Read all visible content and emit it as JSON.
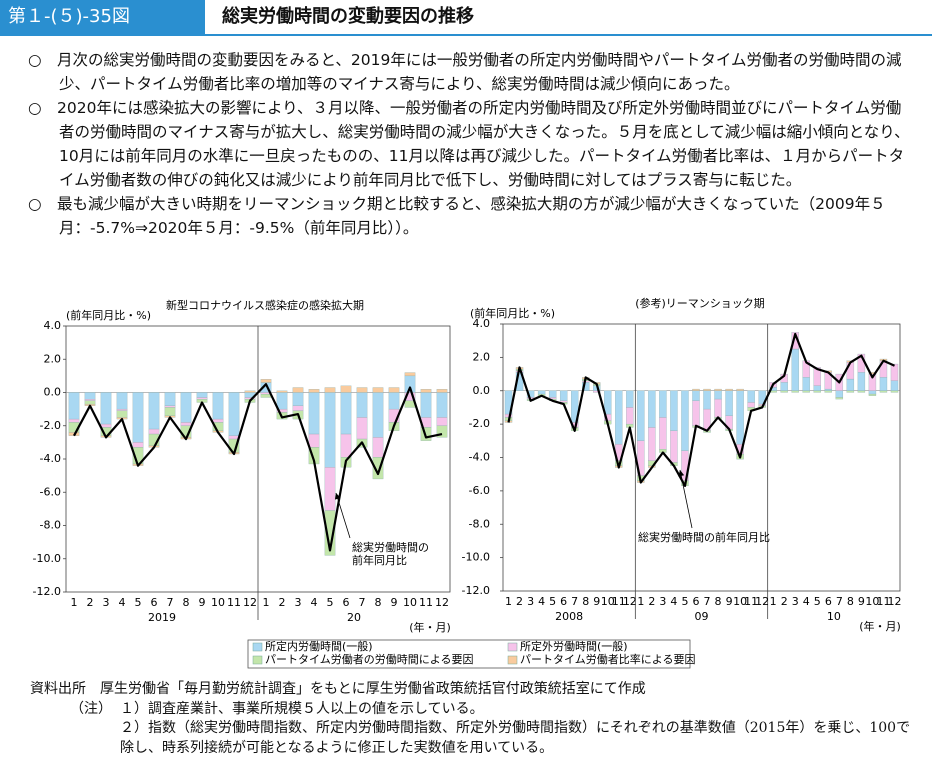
{
  "header": {
    "figure_number": "第１-(５)-35図",
    "title": "総実労働時間の変動要因の推移"
  },
  "paragraphs": [
    "○　月次の総実労働時間の変動要因をみると、2019年には一般労働者の所定内労働時間やパートタイム労働者の労働時間の減少、パートタイム労働者比率の増加等のマイナス寄与により、総実労働時間は減少傾向にあった。",
    "○　2020年には感染拡大の影響により、３月以降、一般労働者の所定内労働時間及び所定外労働時間並びにパートタイム労働者の労働時間のマイナス寄与が拡大し、総実労働時間の減少幅が大きくなった。５月を底として減少幅は縮小傾向となり、10月には前年同月の水準に一旦戻ったものの、11月以降は再び減少した。パートタイム労働者比率は、１月からパートタイム労働者数の伸びの鈍化又は減少により前年同月比で低下し、労働時間に対してはプラス寄与に転じた。",
    "○　最も減少幅が大きい時期をリーマンショック期と比較すると、感染拡大期の方が減少幅が大きくなっていた（2009年５月：-5.7%⇒2020年５月：-9.5%（前年同月比））。"
  ],
  "chart_data": [
    {
      "type": "bar",
      "subtitle": "新型コロナウイルス感染症の感染拡大期",
      "y_label": "(前年同月比・%)",
      "x_label": "(年・月)",
      "categories": [
        "1",
        "2",
        "3",
        "4",
        "5",
        "6",
        "7",
        "8",
        "9",
        "10",
        "11",
        "12",
        "1",
        "2",
        "3",
        "4",
        "5",
        "6",
        "7",
        "8",
        "9",
        "10",
        "11",
        "12"
      ],
      "years": [
        "2019",
        "20"
      ],
      "ylim": [
        -12,
        4
      ],
      "yticks": [
        {
          "value": 4,
          "label": "4.0"
        },
        {
          "value": 2,
          "label": "2.0"
        },
        {
          "value": 0,
          "label": "0.0"
        },
        {
          "value": -2,
          "label": "-2.0"
        },
        {
          "value": -4,
          "label": "-4.0"
        },
        {
          "value": -6,
          "label": "-6.0"
        },
        {
          "value": -8,
          "label": "-8.0"
        },
        {
          "value": -10,
          "label": "-10.0"
        },
        {
          "value": -12,
          "label": "-12.0"
        }
      ],
      "series": [
        {
          "name": "所定内労働時間(一般)",
          "color": "#a9d8f2",
          "values": [
            -1.6,
            -0.4,
            -1.9,
            -1.0,
            -3.0,
            -2.2,
            -0.8,
            -1.8,
            -0.3,
            -1.6,
            -2.6,
            -0.3,
            0.6,
            -1.0,
            -0.8,
            -2.5,
            -4.5,
            -2.5,
            -1.5,
            -2.7,
            -1.0,
            1.0,
            -1.5,
            -1.5
          ]
        },
        {
          "name": "所定外労働時間(一般)",
          "color": "#f6c3ea",
          "values": [
            -0.2,
            -0.1,
            -0.2,
            -0.1,
            -0.3,
            -0.3,
            -0.1,
            -0.2,
            -0.1,
            -0.2,
            -0.2,
            -0.1,
            -0.1,
            -0.2,
            -0.3,
            -0.8,
            -2.6,
            -1.4,
            -1.3,
            -1.2,
            -0.8,
            -0.5,
            -0.6,
            -0.5
          ]
        },
        {
          "name": "パートタイム労働者の労働時間による要因",
          "color": "#c3e6ab",
          "values": [
            -0.6,
            -0.2,
            -0.5,
            -0.4,
            -1.0,
            -0.7,
            -0.5,
            -0.7,
            -0.2,
            -0.5,
            -0.8,
            -0.2,
            -0.2,
            -0.4,
            -0.5,
            -1.0,
            -2.7,
            -0.6,
            -0.5,
            -1.3,
            -0.5,
            -0.4,
            -0.8,
            -0.7
          ]
        },
        {
          "name": "パートタイム労働者比率による要因",
          "color": "#f9cb9e",
          "values": [
            -0.2,
            -0.1,
            -0.1,
            -0.1,
            -0.1,
            -0.1,
            -0.1,
            -0.1,
            0.0,
            -0.1,
            -0.1,
            0.1,
            0.2,
            0.1,
            0.3,
            0.2,
            0.3,
            0.4,
            0.3,
            0.3,
            0.3,
            0.2,
            0.2,
            0.2
          ]
        }
      ],
      "line": {
        "color": "#000000",
        "values": [
          -2.6,
          -0.8,
          -2.7,
          -1.6,
          -4.4,
          -3.3,
          -1.5,
          -2.8,
          -0.6,
          -2.4,
          -3.7,
          -0.5,
          0.5,
          -1.5,
          -1.3,
          -4.1,
          -9.5,
          -4.1,
          -3.0,
          -4.9,
          -2.0,
          0.3,
          -2.7,
          -2.5
        ]
      },
      "annotation": [
        "総実労働時間の",
        "前年同月比"
      ]
    },
    {
      "type": "bar",
      "subtitle": "(参考)リーマンショック期",
      "y_label": "(前年同月比・%)",
      "x_label": "(年・月)",
      "categories": [
        "1",
        "2",
        "3",
        "4",
        "5",
        "6",
        "7",
        "8",
        "9",
        "10",
        "11",
        "12",
        "1",
        "2",
        "3",
        "4",
        "5",
        "6",
        "7",
        "8",
        "9",
        "10",
        "11",
        "12",
        "1",
        "2",
        "3",
        "4",
        "5",
        "6",
        "7",
        "8",
        "9",
        "10",
        "11",
        "12"
      ],
      "years": [
        "2008",
        "09",
        "10"
      ],
      "ylim": [
        -12,
        4
      ],
      "yticks": [
        {
          "value": 4,
          "label": "4.0"
        },
        {
          "value": 2,
          "label": "2.0"
        },
        {
          "value": 0,
          "label": "0.0"
        },
        {
          "value": -2,
          "label": "-2.0"
        },
        {
          "value": -4,
          "label": "-4.0"
        },
        {
          "value": -6,
          "label": "-6.0"
        },
        {
          "value": -8,
          "label": "-8.0"
        },
        {
          "value": -10,
          "label": "-10.0"
        },
        {
          "value": -12,
          "label": "-12.0"
        }
      ],
      "series": [
        {
          "color": "#a9d8f2",
          "values": [
            -1.4,
            1.1,
            -0.4,
            -0.2,
            -0.4,
            -0.6,
            -1.9,
            0.5,
            0.3,
            -1.4,
            -3.2,
            -1.0,
            -3.0,
            -2.2,
            -1.6,
            -2.4,
            -3.6,
            -0.6,
            -1.1,
            -0.5,
            -1.5,
            -3.2,
            -0.7,
            -0.8,
            0.2,
            0.5,
            2.5,
            0.8,
            0.3,
            0.1,
            -0.4,
            0.7,
            1.1,
            -0.2,
            0.8,
            0.6
          ]
        },
        {
          "color": "#f6c3ea",
          "values": [
            -0.2,
            0.1,
            -0.1,
            0.0,
            -0.1,
            -0.1,
            -0.3,
            0.1,
            -0.1,
            -0.4,
            -1.0,
            -1.0,
            -2.1,
            -2.0,
            -1.9,
            -1.9,
            -1.8,
            -1.5,
            -1.3,
            -1.1,
            -0.8,
            -0.6,
            -0.3,
            -0.1,
            0.3,
            0.5,
            1.0,
            1.0,
            1.1,
            1.0,
            1.0,
            1.0,
            1.1,
            1.0,
            1.0,
            1.0
          ]
        },
        {
          "color": "#c3e6ab",
          "values": [
            -0.2,
            0.1,
            -0.1,
            -0.1,
            -0.1,
            -0.1,
            -0.2,
            0.1,
            0.1,
            -0.2,
            -0.3,
            -0.2,
            -0.3,
            -0.3,
            -0.2,
            -0.2,
            -0.3,
            -0.1,
            -0.1,
            -0.1,
            -0.1,
            -0.3,
            -0.2,
            -0.1,
            -0.1,
            -0.1,
            -0.1,
            -0.1,
            -0.1,
            -0.1,
            -0.1,
            -0.1,
            -0.1,
            -0.1,
            -0.1,
            -0.1
          ]
        },
        {
          "color": "#f9cb9e",
          "values": [
            -0.1,
            0.1,
            0.0,
            0.0,
            0.0,
            0.0,
            0.0,
            0.1,
            0.1,
            0.0,
            -0.1,
            0.0,
            -0.1,
            -0.1,
            0.0,
            0.0,
            0.0,
            0.1,
            0.1,
            0.1,
            0.1,
            0.1,
            0.0,
            0.0,
            0.0,
            0.0,
            0.0,
            0.0,
            0.0,
            0.1,
            0.0,
            0.1,
            0.0,
            0.1,
            0.1,
            0.0
          ]
        }
      ],
      "line": {
        "color": "#000000",
        "values": [
          -1.9,
          1.4,
          -0.6,
          -0.3,
          -0.6,
          -0.8,
          -2.4,
          0.8,
          0.4,
          -2.0,
          -4.6,
          -2.2,
          -5.5,
          -4.6,
          -3.7,
          -4.5,
          -5.7,
          -2.1,
          -2.4,
          -1.6,
          -2.3,
          -4.0,
          -1.2,
          -1.0,
          0.4,
          0.9,
          3.4,
          1.7,
          1.3,
          1.1,
          0.5,
          1.7,
          2.1,
          0.8,
          1.8,
          1.5
        ]
      },
      "annotation": [
        "総実労働時間の前年同月比"
      ]
    }
  ],
  "notes": {
    "source_label": "資料出所",
    "source": "厚生労働省「毎月勤労統計調査」をもとに厚生労働省政策統括官付政策統括室にて作成",
    "note_label": "（注）",
    "items": [
      "１）調査産業計、事業所規模５人以上の値を示している。",
      "２）指数（総実労働時間指数、所定内労働時間指数、所定外労働時間指数）にそれぞれの基準数値（2015年）を乗じ、100で除し、時系列接続が可能となるように修正した実数値を用いている。"
    ]
  }
}
